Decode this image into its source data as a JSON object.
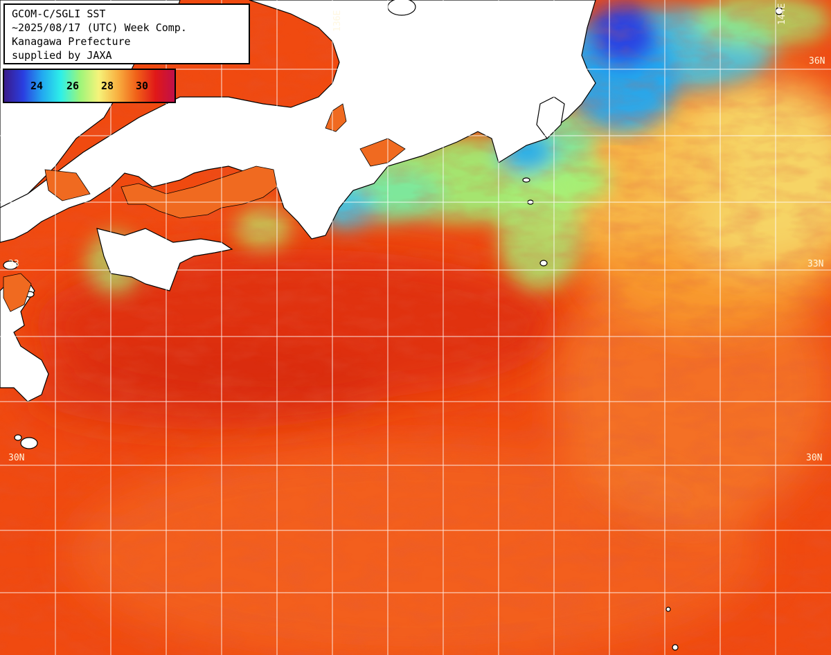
{
  "title_box": {
    "lines": [
      "GCOM-C/SGLI SST",
      "~2025/08/17 (UTC) Week Comp.",
      "Kanagawa Prefecture",
      "supplied by JAXA"
    ]
  },
  "colorbar": {
    "ticks": [
      "24",
      "26",
      "28",
      "30"
    ],
    "colors": [
      "#3a1a8a",
      "#2a3ee0",
      "#22a8f0",
      "#2ef0e8",
      "#9cf57a",
      "#f6f37a",
      "#f8b040",
      "#f06018",
      "#e01818",
      "#c0104a"
    ]
  },
  "grid_labels": {
    "lon_136": "136E",
    "lon_144": "144E",
    "lat_36_right": "36N",
    "lat_33_left": "33",
    "lat_33_right": "33N",
    "lat_30_left": "30N",
    "lat_30_right": "30N"
  },
  "colors": {
    "land": "#ffffff",
    "ocean_warm": "#f04a10",
    "ocean_hot": "#dc2a10",
    "ocean_mid": "#f8a030",
    "ocean_cool": "#f6f37a",
    "ocean_green": "#9cf57a",
    "ocean_cyan": "#22c8f0",
    "ocean_blue": "#2a3ee0",
    "ocean_deep": "#3a1a8a",
    "grid": "#ffffff"
  }
}
